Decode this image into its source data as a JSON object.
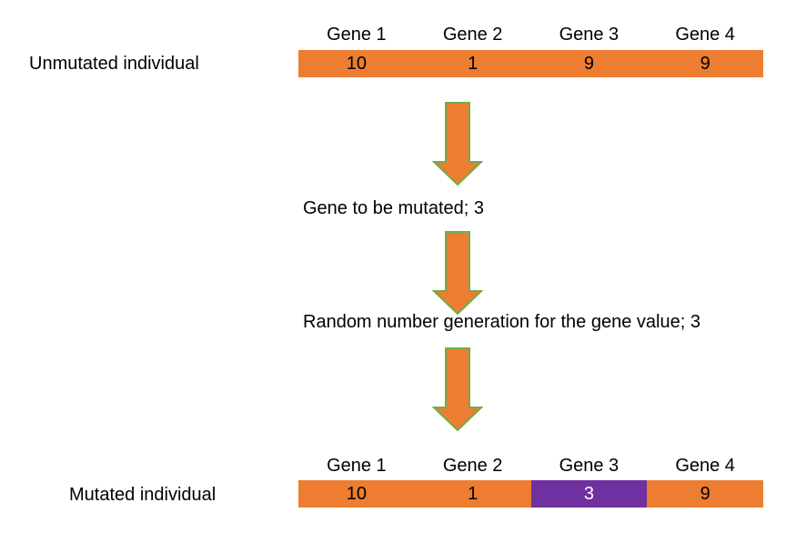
{
  "colors": {
    "cell_fill": "#ED7D31",
    "mutated_fill": "#7030A0",
    "mutated_text": "#ffffff",
    "arrow_fill": "#ED7D31",
    "arrow_stroke": "#70AD47"
  },
  "unmutated": {
    "label": "Unmutated individual",
    "headers": [
      "Gene 1",
      "Gene 2",
      "Gene 3",
      "Gene 4"
    ],
    "values": [
      "10",
      "1",
      "9",
      "9"
    ]
  },
  "steps": [
    {
      "text": "Gene to be mutated; 3"
    },
    {
      "text": "Random number generation for the gene value; 3"
    }
  ],
  "mutated": {
    "label": "Mutated individual",
    "headers": [
      "Gene 1",
      "Gene 2",
      "Gene 3",
      "Gene 4"
    ],
    "values": [
      "10",
      "1",
      "3",
      "9"
    ],
    "mutated_gene_number": 3
  },
  "icons": [
    "arrow-down-icon"
  ]
}
